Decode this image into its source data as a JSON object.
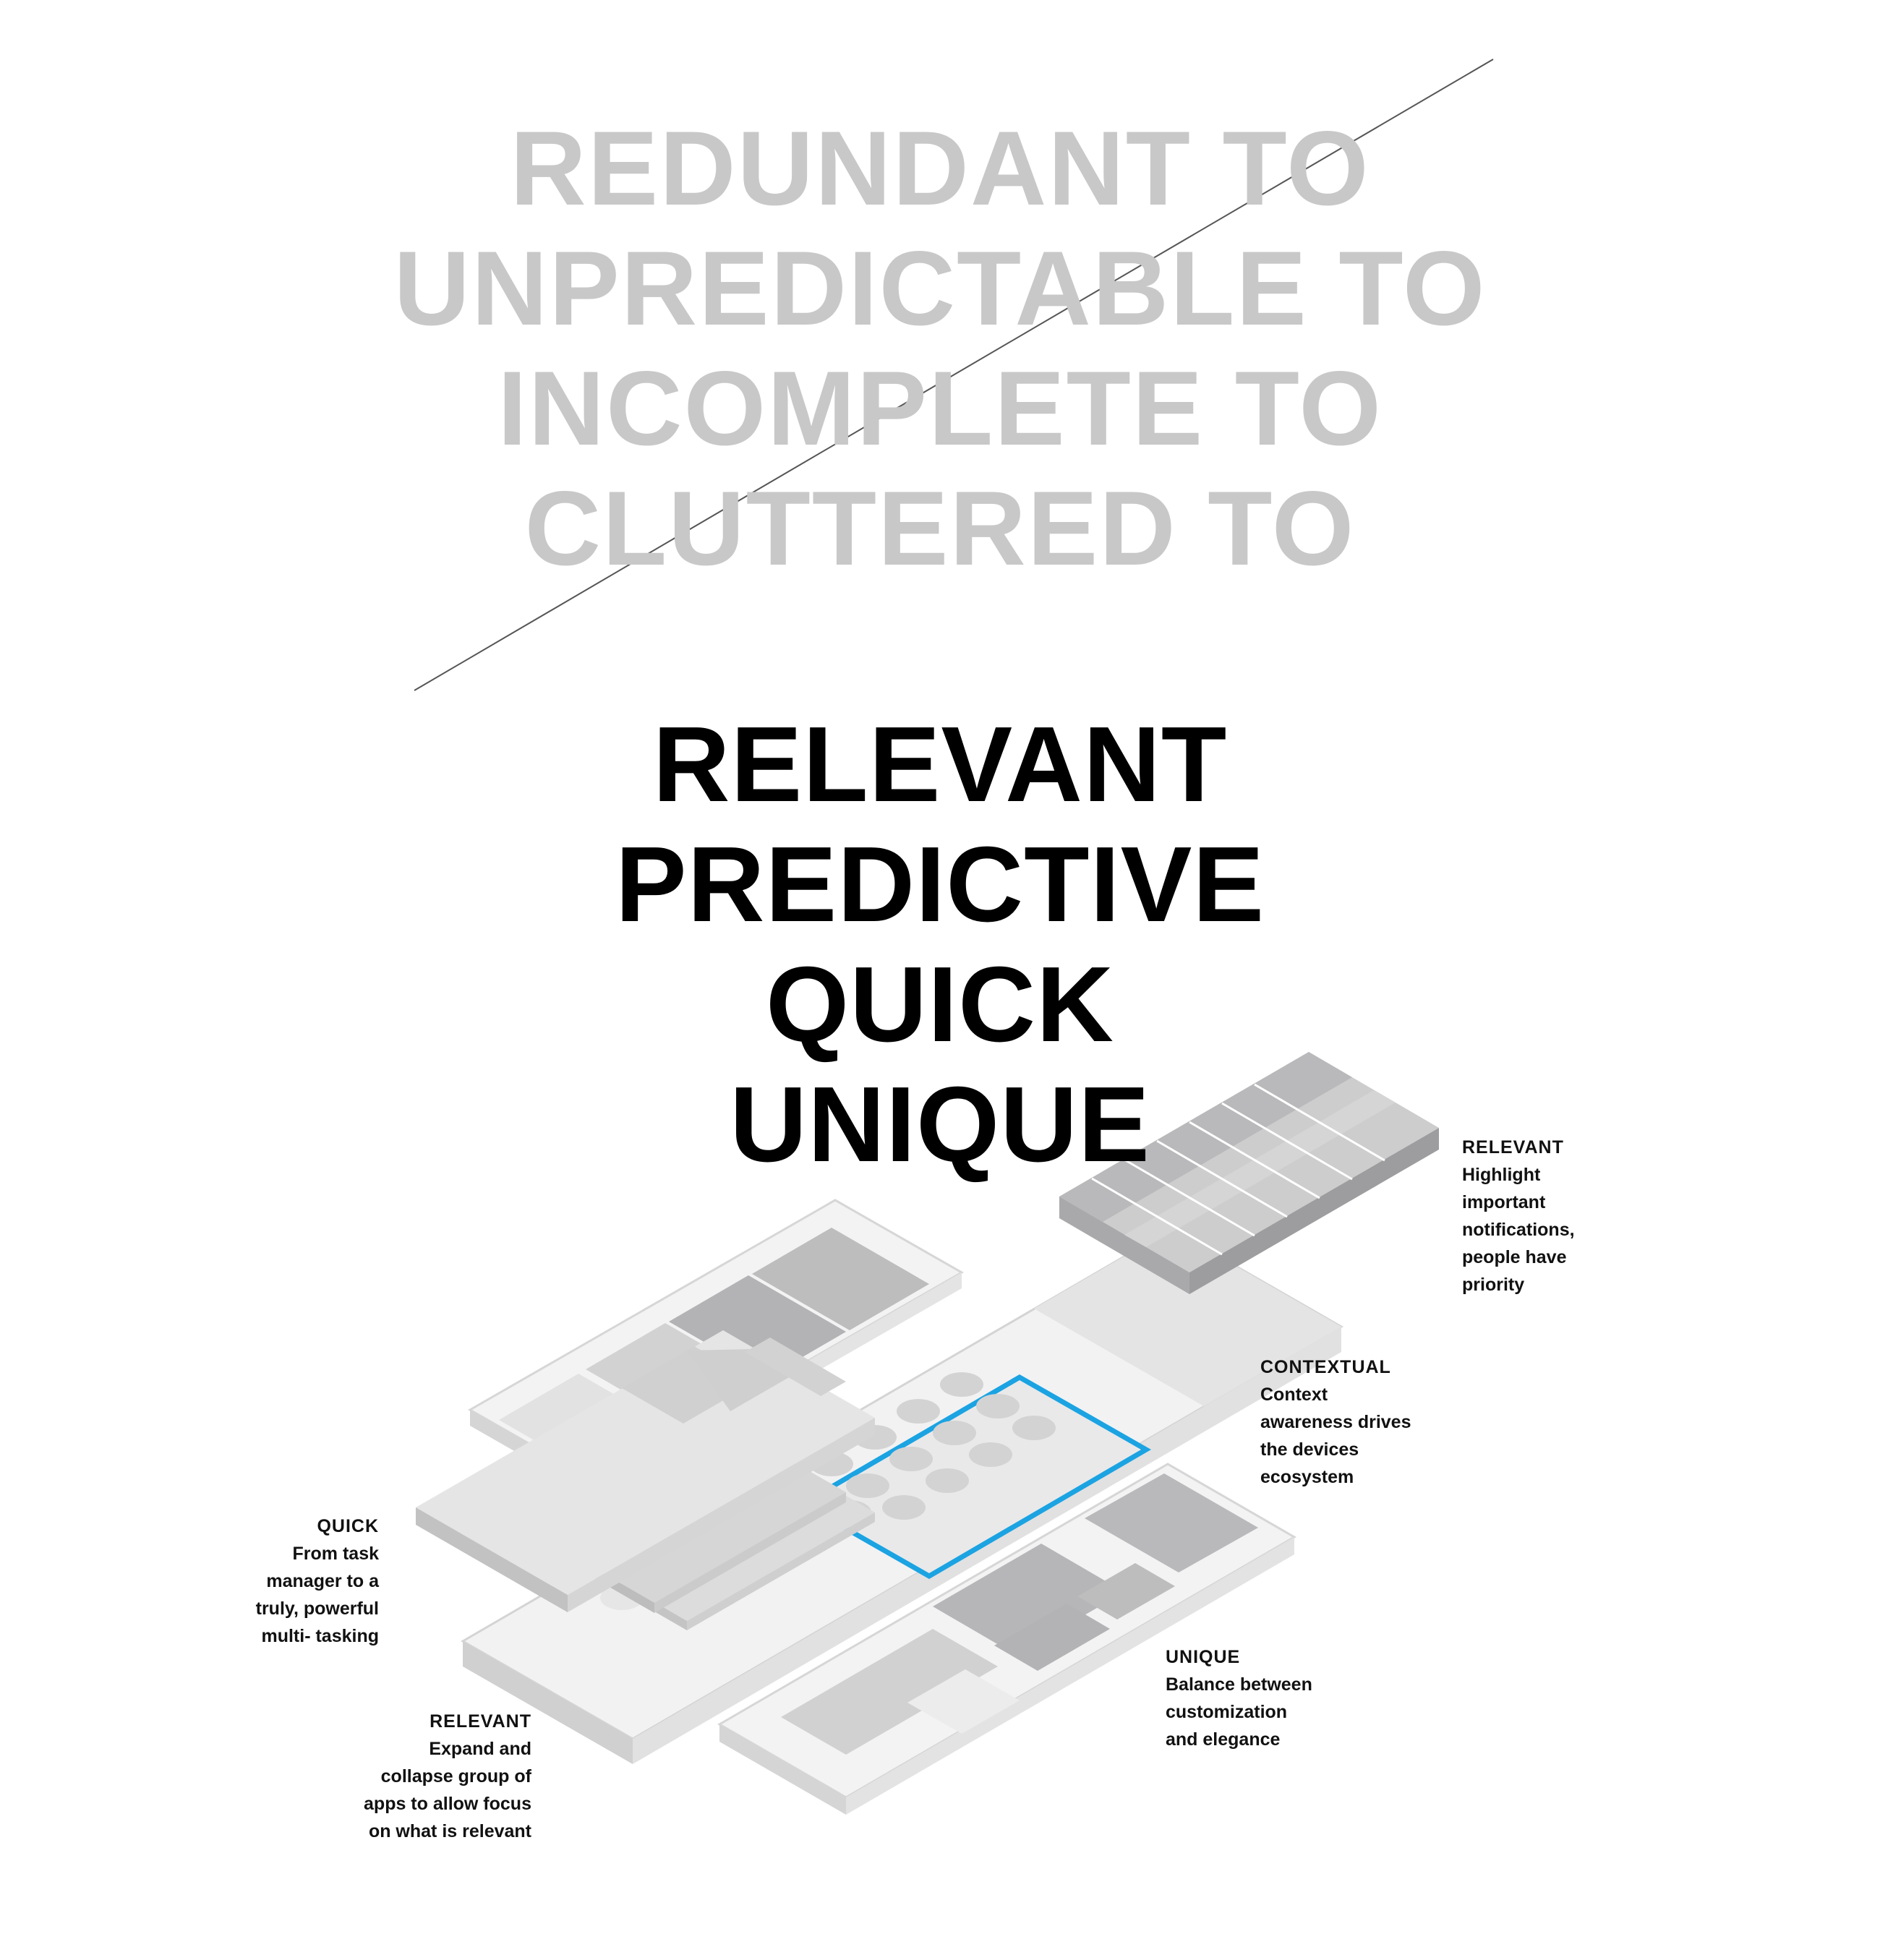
{
  "crossed_out_lines": [
    "REDUNDANT TO",
    "UNPREDICTABLE TO",
    "INCOMPLETE TO",
    "CLUTTERED TO"
  ],
  "principles": [
    "RELEVANT",
    "PREDICTIVE",
    "QUICK",
    "UNIQUE"
  ],
  "annotations": {
    "relevant_top": {
      "heading": "RELEVANT",
      "body": "Highlight\nimportant\nnotifications,\npeople have\npriority"
    },
    "contextual": {
      "heading": "CONTEXTUAL",
      "body": "Context\nawareness drives\nthe devices\necosystem"
    },
    "quick": {
      "heading": "QUICK",
      "body": "From task\nmanager to a\ntruly, powerful\nmulti- tasking"
    },
    "unique": {
      "heading": "UNIQUE",
      "body": "Balance between\ncustomization\nand elegance"
    },
    "relevant_bottom": {
      "heading": "RELEVANT",
      "body": "Expand and\ncollapse group of\napps to allow focus\non what is relevant"
    }
  },
  "colors": {
    "crossed_text": "#c8c8c8",
    "main_text": "#000000",
    "highlight_outline": "#1ba3e2",
    "layer_light": "#f1f1f2",
    "layer_mid": "#d9d9da",
    "layer_dark": "#b3b3b5"
  }
}
